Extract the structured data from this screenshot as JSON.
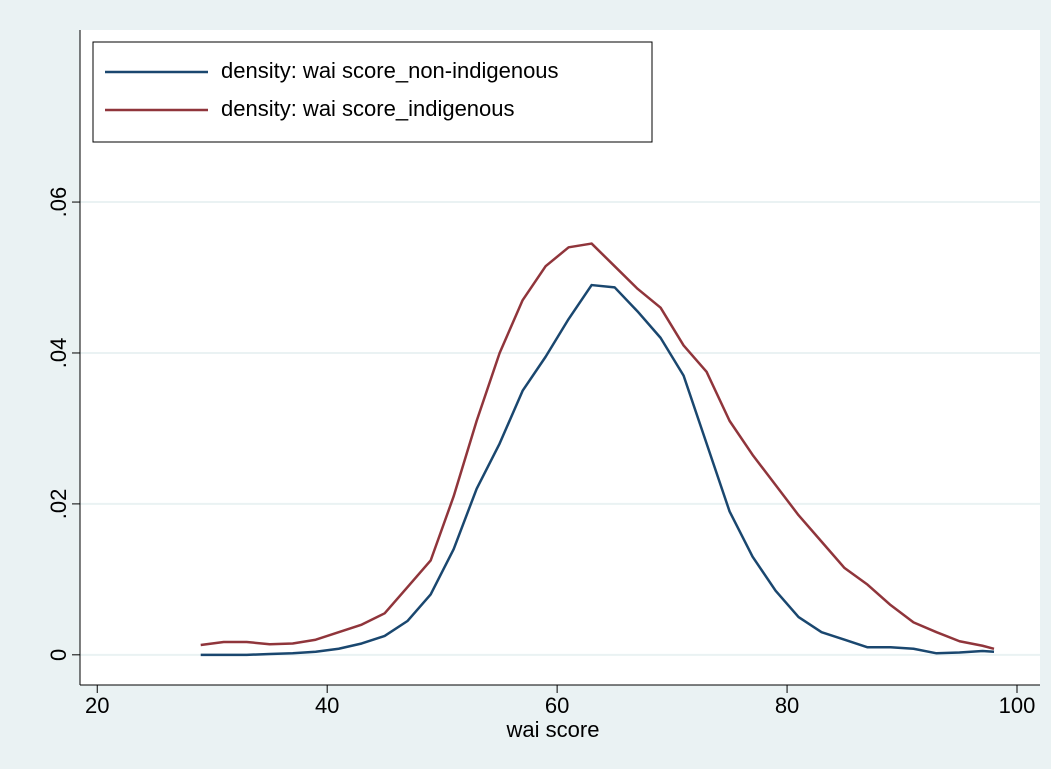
{
  "chart_data": {
    "type": "line",
    "x_label": "wai score",
    "x": [
      29,
      31,
      33,
      35,
      37,
      39,
      41,
      43,
      45,
      47,
      49,
      51,
      53,
      55,
      57,
      59,
      61,
      63,
      65,
      67,
      69,
      71,
      73,
      75,
      77,
      79,
      81,
      83,
      85,
      87,
      89,
      91,
      93,
      95,
      97,
      98
    ],
    "series": [
      {
        "name": "density: wai score_non-indigenous",
        "color": "#1a476f",
        "values": [
          0,
          0,
          0,
          0.0001,
          0.0002,
          0.0004,
          0.0008,
          0.0015,
          0.0025,
          0.0045,
          0.008,
          0.014,
          0.022,
          0.028,
          0.035,
          0.0395,
          0.0445,
          0.049,
          0.0487,
          0.0455,
          0.042,
          0.037,
          0.028,
          0.019,
          0.013,
          0.0085,
          0.005,
          0.003,
          0.002,
          0.001,
          0.001,
          0.0008,
          0.0002,
          0.0003,
          0.0005,
          0.0004
        ]
      },
      {
        "name": "density: wai score_indigenous",
        "color": "#90353b",
        "values": [
          0.0013,
          0.0017,
          0.0017,
          0.0014,
          0.0015,
          0.002,
          0.003,
          0.004,
          0.0055,
          0.009,
          0.0125,
          0.021,
          0.031,
          0.04,
          0.047,
          0.0515,
          0.054,
          0.0545,
          0.0515,
          0.0485,
          0.046,
          0.041,
          0.0375,
          0.031,
          0.0265,
          0.0225,
          0.0185,
          0.015,
          0.0115,
          0.0093,
          0.0066,
          0.0043,
          0.003,
          0.0018,
          0.0012,
          0.0008
        ]
      }
    ],
    "xlim": [
      18.5,
      102
    ],
    "xticks": [
      20,
      40,
      60,
      80,
      100
    ],
    "ylim": [
      -0.004,
      0.0828
    ],
    "yticks": [
      0,
      {
        "value": 0.02,
        "label": ".02"
      },
      {
        "value": 0.04,
        "label": ".04"
      },
      {
        "value": 0.06,
        "label": ".06"
      }
    ],
    "grid": true,
    "legend": "top-left"
  }
}
